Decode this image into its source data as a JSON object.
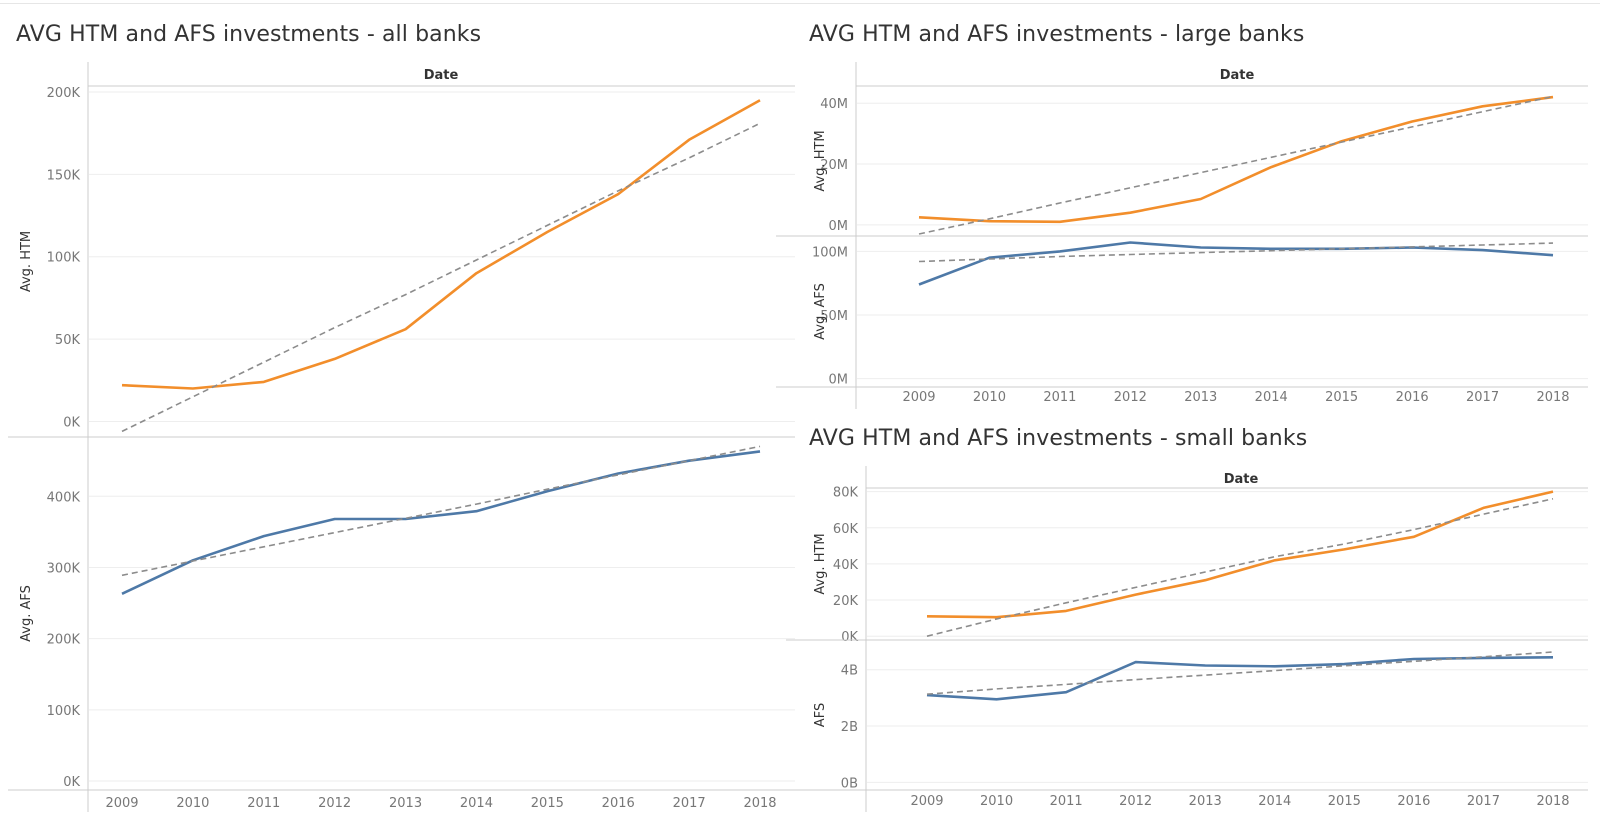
{
  "panels": [
    {
      "title": "AVG HTM and AFS investments - all banks",
      "column_header": "Date"
    },
    {
      "title": "AVG HTM and AFS investments - large banks",
      "column_header": "Date"
    },
    {
      "title": "AVG HTM and AFS investments - small banks",
      "column_header": "Date"
    }
  ],
  "colors": {
    "htm_line": "#F28E2B",
    "afs_line": "#4E79A7",
    "trend_line": "#8C8C8C",
    "grid": "#EEEEEE",
    "axis_rule": "#CCCCCC"
  },
  "chart_data": [
    {
      "type": "line",
      "title": "AVG HTM and AFS investments - all banks",
      "x_label": "Date",
      "x": [
        "2009",
        "2010",
        "2011",
        "2012",
        "2013",
        "2014",
        "2015",
        "2016",
        "2017",
        "2018"
      ],
      "rows": [
        {
          "ylabel": "Avg. HTM",
          "ylim": [
            -7000,
            200000
          ],
          "yticks": [
            0,
            50000,
            100000,
            150000,
            200000
          ],
          "ytick_labels": [
            "0K",
            "50K",
            "100K",
            "150K",
            "200K"
          ],
          "series": [
            {
              "values": [
                22000,
                20000,
                24000,
                38000,
                56000,
                90000,
                115000,
                138000,
                171000,
                195000
              ]
            },
            {
              "trend": true,
              "values": [
                -6000,
                15000,
                36000,
                57000,
                77000,
                98000,
                119000,
                140000,
                160000,
                181000
              ]
            }
          ]
        },
        {
          "ylabel": "Avg. AFS",
          "ylim": [
            0,
            465000
          ],
          "yticks": [
            0,
            100000,
            200000,
            300000,
            400000
          ],
          "ytick_labels": [
            "0K",
            "100K",
            "200K",
            "300K",
            "400K"
          ],
          "series": [
            {
              "values": [
                263000,
                310000,
                344000,
                368000,
                368000,
                379000,
                407000,
                432000,
                450000,
                463000
              ]
            },
            {
              "trend": true,
              "values": [
                289000,
                309000,
                329000,
                349000,
                369000,
                389000,
                410000,
                430000,
                450000,
                470000
              ]
            }
          ]
        }
      ]
    },
    {
      "type": "line",
      "title": "AVG HTM and AFS investments - large banks",
      "x_label": "Date",
      "x": [
        "2009",
        "2010",
        "2011",
        "2012",
        "2013",
        "2014",
        "2015",
        "2016",
        "2017",
        "2018"
      ],
      "rows": [
        {
          "ylabel": "Avg. HTM",
          "ylim": [
            -3000000,
            45000000
          ],
          "yticks": [
            0,
            20000000,
            40000000
          ],
          "ytick_labels": [
            "0M",
            "20M",
            "40M"
          ],
          "series": [
            {
              "values": [
                2500000,
                1200000,
                1000000,
                4000000,
                8500000,
                19000000,
                27500000,
                34000000,
                39000000,
                42000000
              ]
            },
            {
              "trend": true,
              "values": [
                -3000000,
                2000000,
                7200000,
                12200000,
                17200000,
                22200000,
                27200000,
                32200000,
                37200000,
                42200000
              ]
            }
          ]
        },
        {
          "ylabel": "Avg. AFS",
          "ylim": [
            -5000000,
            105000000
          ],
          "yticks": [
            0,
            50000000,
            100000000
          ],
          "ytick_labels": [
            "0M",
            "50M",
            "100M"
          ],
          "series": [
            {
              "values": [
                74000000,
                95000000,
                100000000,
                107000000,
                103000000,
                102000000,
                102000000,
                103000000,
                101000000,
                97000000
              ]
            },
            {
              "trend": true,
              "values": [
                92000000,
                94000000,
                96000000,
                97500000,
                99000000,
                100500000,
                102000000,
                103500000,
                105000000,
                106500000
              ]
            }
          ]
        }
      ]
    },
    {
      "type": "line",
      "title": "AVG HTM and AFS investments - small banks",
      "x_label": "Date",
      "x": [
        "2009",
        "2010",
        "2011",
        "2012",
        "2013",
        "2014",
        "2015",
        "2016",
        "2017",
        "2018"
      ],
      "rows": [
        {
          "ylabel": "Avg. HTM",
          "ylim": [
            -1000,
            82000
          ],
          "yticks": [
            0,
            20000,
            40000,
            60000,
            80000
          ],
          "ytick_labels": [
            "0K",
            "20K",
            "40K",
            "60K",
            "80K"
          ],
          "series": [
            {
              "values": [
                11000,
                10500,
                14000,
                23000,
                31000,
                42000,
                48000,
                55000,
                71000,
                80000
              ]
            },
            {
              "trend": true,
              "values": [
                0,
                9500,
                18500,
                27000,
                35500,
                44000,
                51000,
                59000,
                67500,
                76000
              ]
            }
          ]
        },
        {
          "ylabel": "AFS",
          "ylim": [
            -200000000,
            4700000000
          ],
          "yticks": [
            0,
            2000000000,
            4000000000
          ],
          "ytick_labels": [
            "0B",
            "2B",
            "4B"
          ],
          "series": [
            {
              "values": [
                3100000000,
                2950000000,
                3200000000,
                4270000000,
                4150000000,
                4120000000,
                4200000000,
                4380000000,
                4420000000,
                4440000000
              ]
            },
            {
              "trend": true,
              "values": [
                3130000000,
                3320000000,
                3480000000,
                3650000000,
                3810000000,
                3970000000,
                4140000000,
                4300000000,
                4460000000,
                4630000000
              ]
            }
          ]
        }
      ]
    }
  ]
}
